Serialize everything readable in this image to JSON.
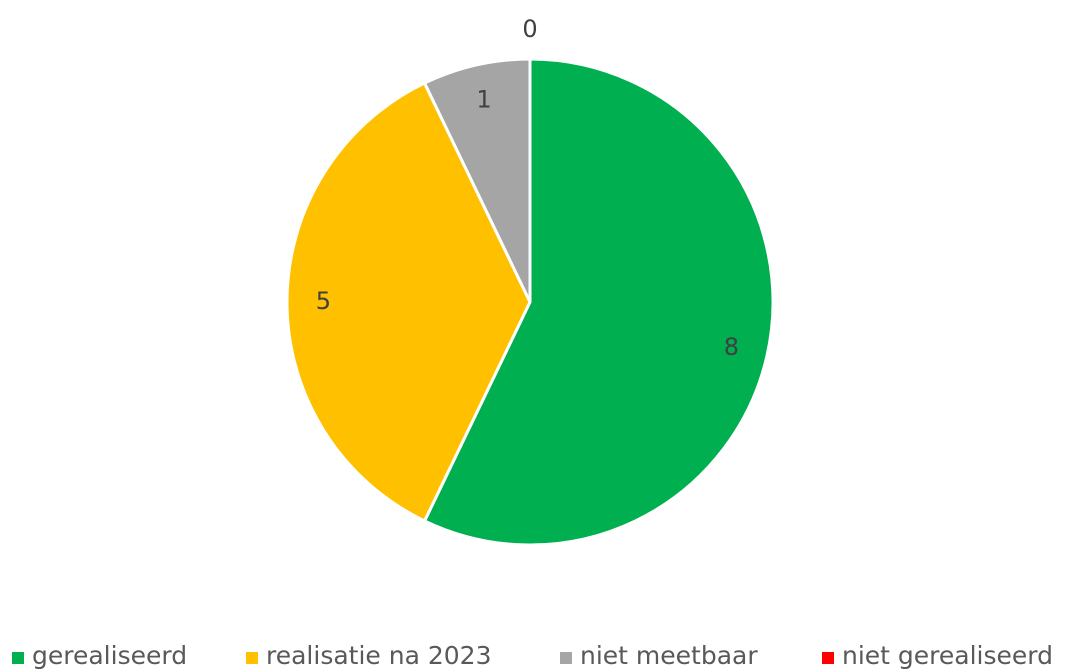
{
  "chart_data": {
    "type": "pie",
    "categories": [
      "gerealiseerd",
      "realisatie na 2023",
      "niet meetbaar",
      "niet gerealiseerd"
    ],
    "values": [
      8,
      5,
      1,
      0
    ],
    "colors": [
      "#00b050",
      "#ffc000",
      "#a5a5a5",
      "#ff0000"
    ],
    "legend": "bottom"
  }
}
